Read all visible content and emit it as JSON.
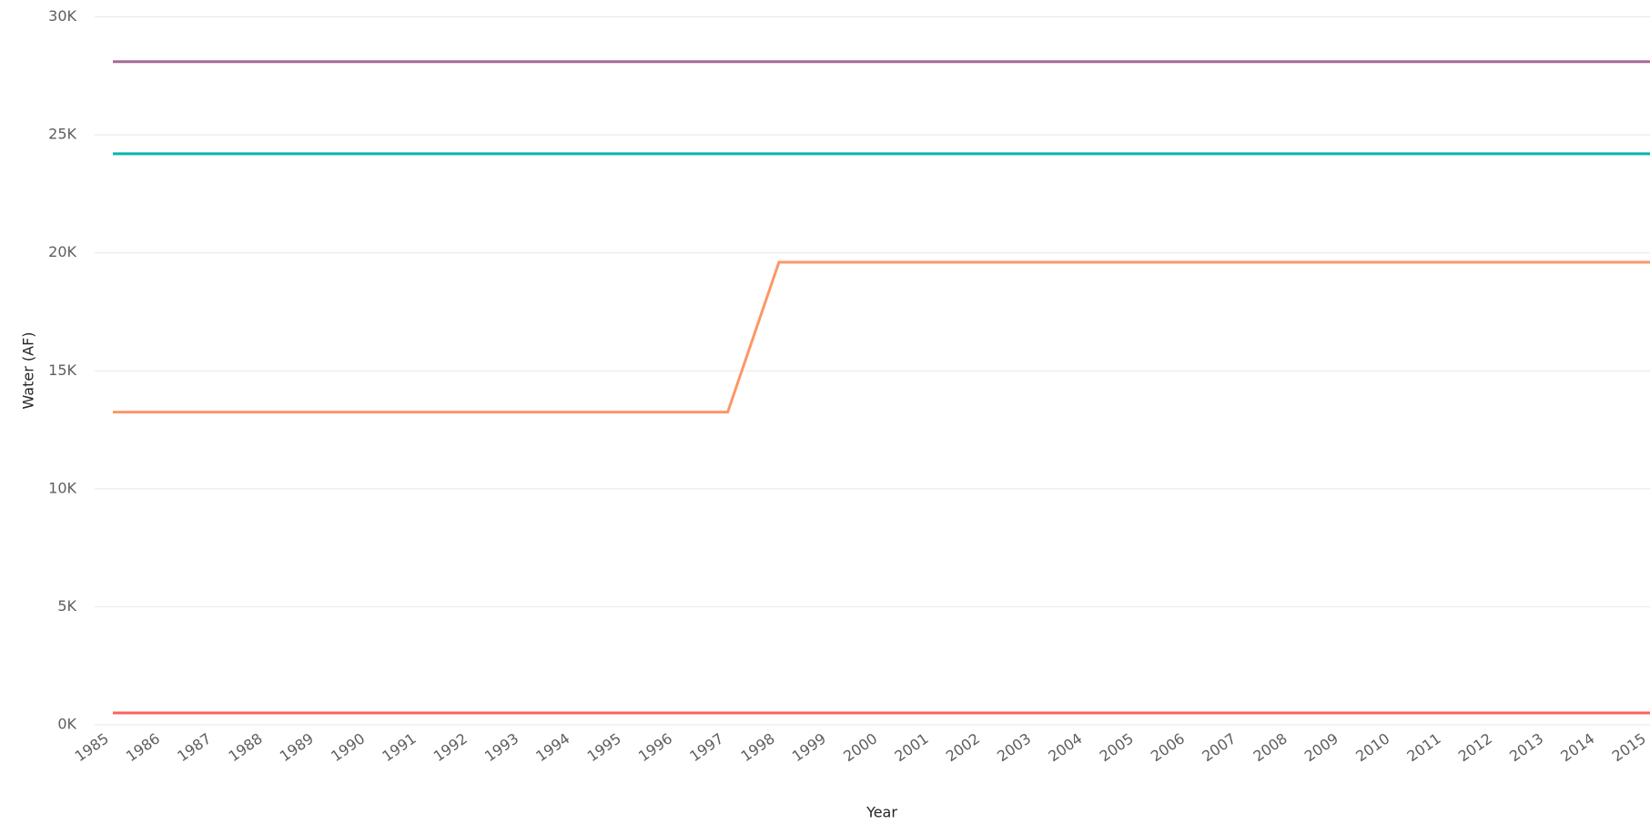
{
  "chart_data": {
    "type": "line",
    "x_label": "Year",
    "y_label": "Water (AF)",
    "categories": [
      "1985",
      "1986",
      "1987",
      "1988",
      "1989",
      "1990",
      "1991",
      "1992",
      "1993",
      "1994",
      "1995",
      "1996",
      "1997",
      "1998",
      "1999",
      "2000",
      "2001",
      "2002",
      "2003",
      "2004",
      "2005",
      "2006",
      "2007",
      "2008",
      "2009",
      "2010",
      "2011",
      "2012",
      "2013",
      "2014",
      "2015"
    ],
    "series": [
      {
        "color": "#a66999",
        "values": [
          28100,
          28100,
          28100,
          28100,
          28100,
          28100,
          28100,
          28100,
          28100,
          28100,
          28100,
          28100,
          28100,
          28100,
          28100,
          28100,
          28100,
          28100,
          28100,
          28100,
          28100,
          28100,
          28100,
          28100,
          28100,
          28100,
          28100,
          28100,
          28100,
          28100,
          28100
        ]
      },
      {
        "color": "#01b8aa",
        "values": [
          24200,
          24200,
          24200,
          24200,
          24200,
          24200,
          24200,
          24200,
          24200,
          24200,
          24200,
          24200,
          24200,
          24200,
          24200,
          24200,
          24200,
          24200,
          24200,
          24200,
          24200,
          24200,
          24200,
          24200,
          24200,
          24200,
          24200,
          24200,
          24200,
          24200,
          24200
        ]
      },
      {
        "color": "#fe9666",
        "values": [
          13250,
          13250,
          13250,
          13250,
          13250,
          13250,
          13250,
          13250,
          13250,
          13250,
          13250,
          13250,
          13250,
          19600,
          19600,
          19600,
          19600,
          19600,
          19600,
          19600,
          19600,
          19600,
          19600,
          19600,
          19600,
          19600,
          19600,
          19600,
          19600,
          19600,
          19600
        ]
      },
      {
        "color": "#fd625e",
        "values": [
          500,
          500,
          500,
          500,
          500,
          500,
          500,
          500,
          500,
          500,
          500,
          500,
          500,
          500,
          500,
          500,
          500,
          500,
          500,
          500,
          500,
          500,
          500,
          500,
          500,
          500,
          500,
          500,
          500,
          500,
          500
        ]
      }
    ],
    "ylim": [
      0,
      30000
    ],
    "yticks": [
      {
        "value": 0,
        "label": "0K"
      },
      {
        "value": 5000,
        "label": "5K"
      },
      {
        "value": 10000,
        "label": "10K"
      },
      {
        "value": 15000,
        "label": "15K"
      },
      {
        "value": 20000,
        "label": "20K"
      },
      {
        "value": 25000,
        "label": "25K"
      },
      {
        "value": 30000,
        "label": "30K"
      }
    ],
    "grid": true
  }
}
